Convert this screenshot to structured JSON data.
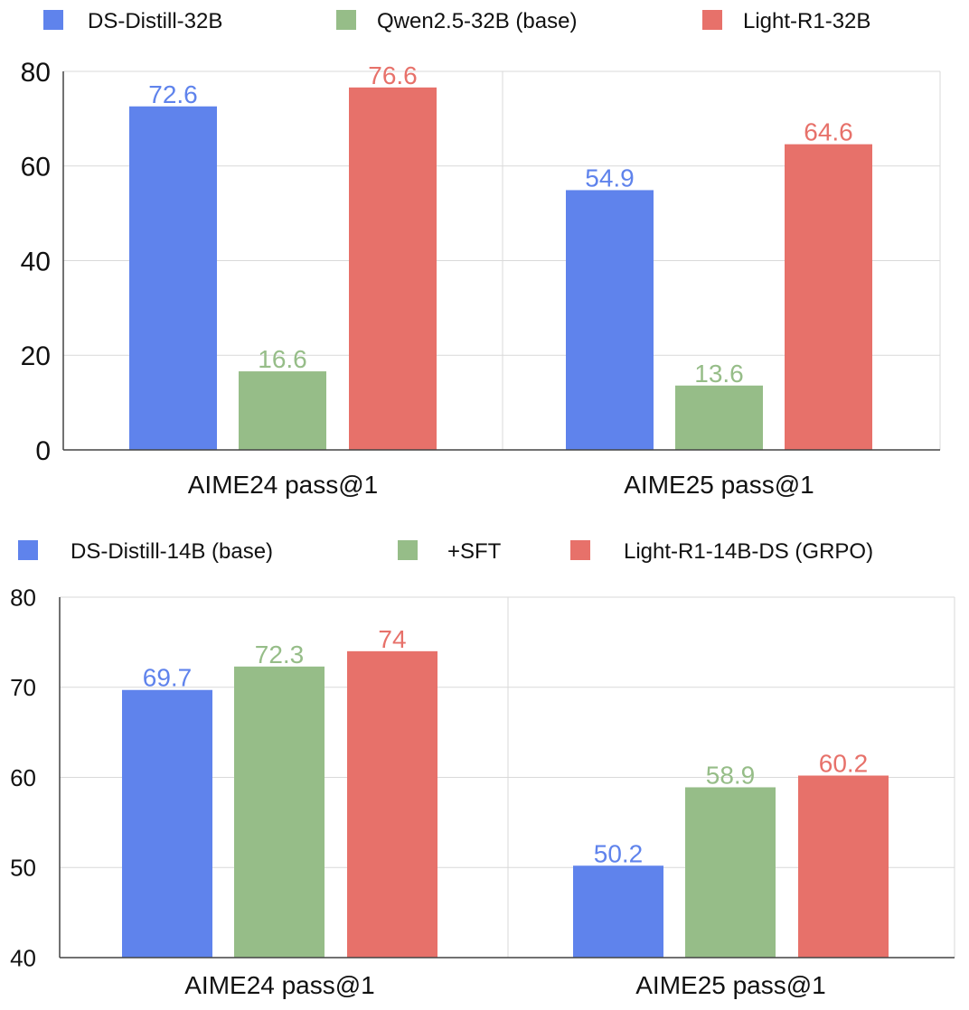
{
  "chart_data": [
    {
      "type": "bar",
      "categories": [
        "AIME24 pass@1",
        "AIME25 pass@1"
      ],
      "series": [
        {
          "name": "DS-Distill-32B",
          "values": [
            72.6,
            54.9
          ]
        },
        {
          "name": "Qwen2.5-32B (base)",
          "values": [
            16.6,
            13.6
          ]
        },
        {
          "name": "Light-R1-32B",
          "values": [
            76.6,
            64.6
          ]
        }
      ],
      "yticks": [
        "0",
        "20",
        "40",
        "60",
        "80"
      ],
      "ylim": [
        0,
        80
      ],
      "grid": true,
      "legend_position": "top"
    },
    {
      "type": "bar",
      "categories": [
        "AIME24 pass@1",
        "AIME25 pass@1"
      ],
      "series": [
        {
          "name": "DS-Distill-14B (base)",
          "values": [
            69.7,
            50.2
          ]
        },
        {
          "name": "+SFT",
          "values": [
            72.3,
            58.9
          ]
        },
        {
          "name": "Light-R1-14B-DS (GRPO)",
          "values": [
            74,
            60.2
          ]
        }
      ],
      "yticks": [
        "40",
        "50",
        "60",
        "70",
        "80"
      ],
      "ylim": [
        40,
        80
      ],
      "grid": true,
      "legend_position": "top"
    }
  ],
  "colors": {
    "series": [
      "#5f83ec",
      "#96bd88",
      "#e7716a"
    ],
    "grid": "#d9d9d9",
    "axis": "#444444",
    "text": "#111111"
  }
}
